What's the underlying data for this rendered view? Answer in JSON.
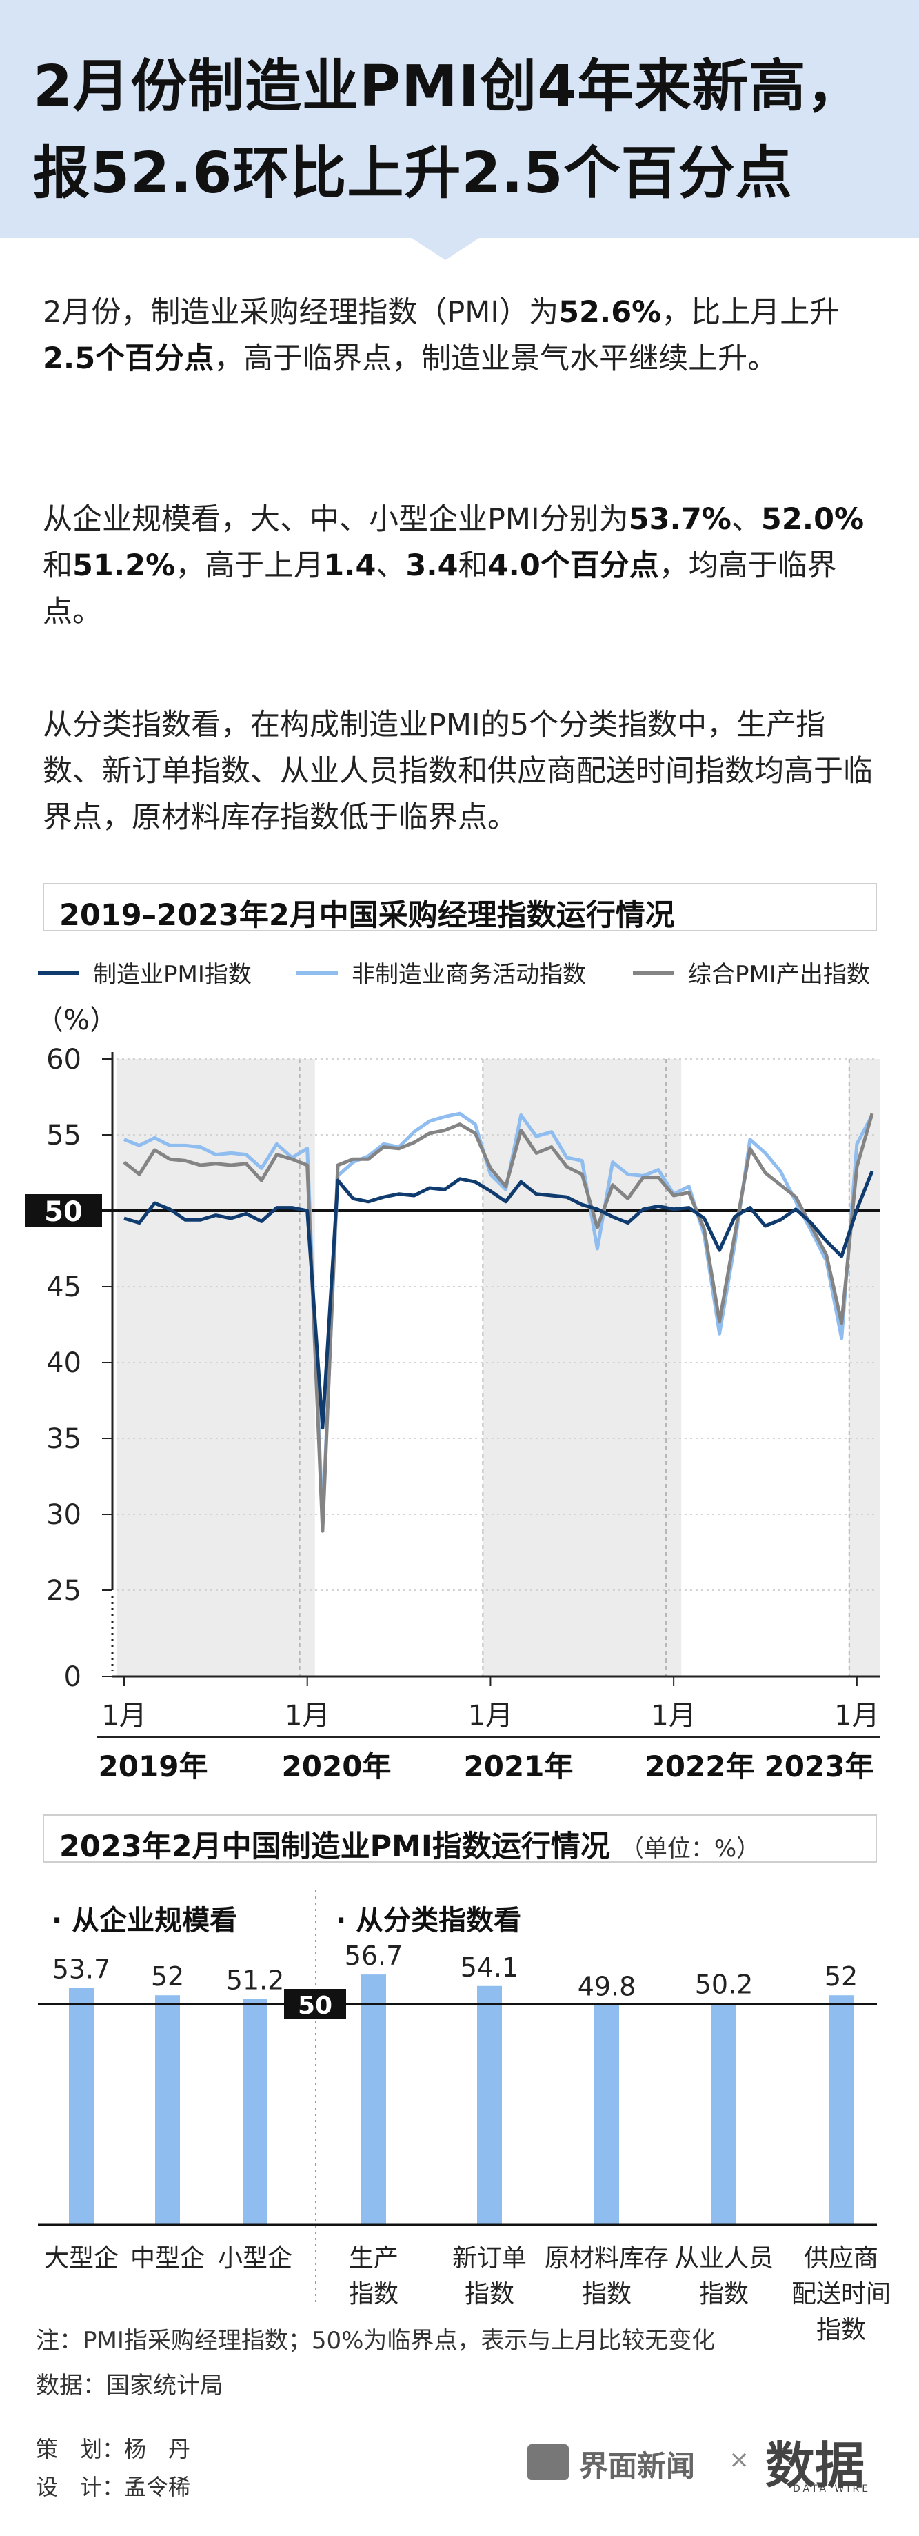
{
  "header": {
    "title_line1": "2月份制造业PMI创4年来新高，",
    "title_line2": "报52.6环比上升2.5个百分点"
  },
  "body": {
    "p1": [
      "2月份，制造业采购经理指数（PMI）为",
      "52.6%",
      "，比上月上升",
      "2.5个百分点",
      "，高于临界点，制造业景气水平继续上升。"
    ],
    "p2": [
      "从企业规模看，大、中、小型企业PMI分别为",
      "53.7%",
      "、",
      "52.0%",
      "和",
      "51.2%",
      "，高于上月",
      "1.4",
      "、",
      "3.4",
      "和",
      "4.0个百分点",
      "，均高于临界点。"
    ],
    "p3": [
      "从分类指数看，在构成制造业PMI的5个分类指数中，生产指数、新订单指数、从业人员指数和供应商配送时间指数均高于临界点，原材料库存指数低于临界点。"
    ]
  },
  "colors": {
    "header_bg": "#d6e4f5",
    "manufacturing": "#0f3b6e",
    "non_manufacturing": "#8fbdf0",
    "composite": "#848484",
    "bar": "#8fbdf0",
    "threshold": "#111111"
  },
  "chart1": {
    "title": "2019–2023年2月中国采购经理指数运行情况",
    "unit_label": "（%）",
    "threshold_label": "50",
    "legend": [
      "制造业PMI指数",
      "非制造业商务活动指数",
      "综合PMI产出指数"
    ],
    "month_labels": [
      "1月",
      "1月",
      "1月",
      "1月",
      "1月"
    ],
    "year_labels": [
      "2019年",
      "2020年",
      "2021年",
      "2022年",
      "2023年"
    ]
  },
  "chart2": {
    "title": "2023年2月中国制造业PMI指数运行情况",
    "unit": "（单位：%）",
    "left_group_title": "· 从企业规模看",
    "right_group_title": "· 从分类指数看",
    "threshold_label": "50"
  },
  "chart_data": [
    {
      "type": "line",
      "title": "2019–2023年2月中国采购经理指数运行情况",
      "xlabel": "",
      "ylabel": "（%）",
      "ylim": [
        0,
        60
      ],
      "yticks": [
        0,
        25,
        30,
        35,
        40,
        45,
        50,
        55,
        60
      ],
      "axis_break": [
        0,
        25
      ],
      "x_start": "2019-01",
      "x_end": "2023-02",
      "grid": true,
      "legend_position": "top",
      "reference_line": 50,
      "series": [
        {
          "name": "制造业PMI指数",
          "values": [
            49.5,
            49.2,
            50.5,
            50.1,
            49.4,
            49.4,
            49.7,
            49.5,
            49.8,
            49.3,
            50.2,
            50.2,
            50.0,
            35.7,
            52.0,
            50.8,
            50.6,
            50.9,
            51.1,
            51.0,
            51.5,
            51.4,
            52.1,
            51.9,
            51.3,
            50.6,
            51.9,
            51.1,
            51.0,
            50.9,
            50.4,
            50.1,
            49.6,
            49.2,
            50.1,
            50.3,
            50.1,
            50.2,
            49.5,
            47.4,
            49.6,
            50.2,
            49.0,
            49.4,
            50.1,
            49.2,
            48.0,
            47.0,
            50.1,
            52.6
          ]
        },
        {
          "name": "非制造业商务活动指数",
          "values": [
            54.7,
            54.3,
            54.8,
            54.3,
            54.3,
            54.2,
            53.7,
            53.8,
            53.7,
            52.8,
            54.4,
            53.5,
            54.1,
            29.6,
            52.3,
            53.2,
            53.6,
            54.4,
            54.2,
            55.2,
            55.9,
            56.2,
            56.4,
            55.7,
            52.4,
            51.4,
            56.3,
            54.9,
            55.2,
            53.5,
            53.3,
            47.5,
            53.2,
            52.4,
            52.3,
            52.7,
            51.1,
            51.6,
            48.4,
            41.9,
            47.8,
            54.7,
            53.8,
            52.6,
            50.6,
            48.7,
            46.7,
            41.6,
            54.4,
            56.3
          ]
        },
        {
          "name": "综合PMI产出指数",
          "values": [
            53.2,
            52.4,
            54.0,
            53.4,
            53.3,
            53.0,
            53.1,
            53.0,
            53.1,
            52.0,
            53.7,
            53.4,
            53.0,
            28.9,
            53.0,
            53.4,
            53.4,
            54.2,
            54.1,
            54.5,
            55.1,
            55.3,
            55.7,
            55.1,
            52.8,
            51.6,
            55.3,
            53.8,
            54.2,
            52.9,
            52.4,
            48.9,
            51.7,
            50.8,
            52.2,
            52.2,
            51.0,
            51.2,
            48.8,
            42.7,
            48.4,
            54.1,
            52.5,
            51.7,
            50.9,
            49.0,
            47.1,
            42.6,
            52.9,
            56.4
          ]
        }
      ]
    },
    {
      "type": "bar",
      "title": "2023年2月中国制造业PMI指数运行情况",
      "unit": "（单位：%）",
      "reference_line": 50,
      "groups": [
        {
          "name": "从企业规模看",
          "categories": [
            "大型企",
            "中型企",
            "小型企"
          ],
          "values": [
            53.7,
            52,
            51.2
          ]
        },
        {
          "name": "从分类指数看",
          "categories": [
            "生产指数",
            "新订单指数",
            "原材料库存指数",
            "从业人员指数",
            "供应商配送时间指数"
          ],
          "values": [
            56.7,
            54.1,
            49.8,
            50.2,
            52
          ]
        }
      ],
      "category_labels": [
        [
          "大型企"
        ],
        [
          "中型企"
        ],
        [
          "小型企"
        ],
        [
          "生产",
          "指数"
        ],
        [
          "新订单",
          "指数"
        ],
        [
          "原材料库存",
          "指数"
        ],
        [
          "从业人员",
          "指数"
        ],
        [
          "供应商",
          "配送时间",
          "指数"
        ]
      ],
      "value_labels": [
        "53.7",
        "52",
        "51.2",
        "56.7",
        "54.1",
        "49.8",
        "50.2",
        "52"
      ]
    }
  ],
  "footer": {
    "note": "注：PMI指采购经理指数；50%为临界点，表示与上月比较无变化",
    "source": "数据：国家统计局",
    "planner": "策　划：杨　丹",
    "designer": "设　计：孟令稀",
    "brand1": "界面新闻",
    "separator": "×",
    "brand2": "数据",
    "brand2_sub": "DATA WIRE"
  }
}
